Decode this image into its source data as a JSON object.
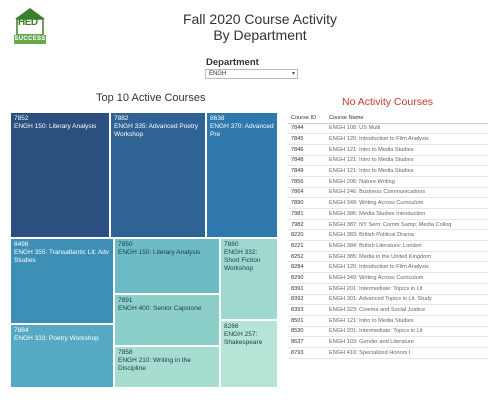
{
  "logo": {
    "text": "HED",
    "band": "SUCCESS"
  },
  "title_line1": "Fall 2020 Course Activity",
  "title_line2": "By Department",
  "department": {
    "label": "Department",
    "value": "ENGH"
  },
  "treemap": {
    "title": "Top 10 Active Courses",
    "tiles": [
      {
        "id": "7852",
        "name": "ENGH 150: Literary Analysis",
        "color": "#2b4f7e"
      },
      {
        "id": "7882",
        "name": "ENGH 335: Advanced Poetry Workshop",
        "color": "#2e6394"
      },
      {
        "id": "8638",
        "name": "ENGH 370: Advanced Pre",
        "color": "#2f78ae"
      },
      {
        "id": "8498",
        "name": "ENGH 355: Transatlantic Lit: Adv Studies",
        "color": "#3d8fb5"
      },
      {
        "id": "7884",
        "name": "ENGH 333: Poetry Workshop",
        "color": "#56a9c2"
      },
      {
        "id": "7850",
        "name": "ENGH 150: Literary Analysis",
        "color": "#6dbbc5"
      },
      {
        "id": "7891",
        "name": "ENGH 400: Senior Capstone",
        "color": "#8ccfc9"
      },
      {
        "id": "7858",
        "name": "ENGH 210: Writing in the Discipline",
        "color": "#a7dcd0"
      },
      {
        "id": "7880",
        "name": "ENGH 332: Short Fiction Workshop",
        "color": "#9ed8cf"
      },
      {
        "id": "8266",
        "name": "ENGH 257: Shakespeare",
        "color": "#b6e4d7"
      }
    ]
  },
  "no_activity": {
    "title": "No Activity Courses",
    "headers": [
      "Course ID",
      "Course Name"
    ],
    "rows": [
      [
        "7844",
        "ENGH 108: US Multi"
      ],
      [
        "7845",
        "ENGH 120: Introduction to Film Analysis"
      ],
      [
        "7846",
        "ENGH 121: Intro to Media Studies"
      ],
      [
        "7848",
        "ENGH 121: Intro to Media Studies"
      ],
      [
        "7849",
        "ENGH 121: Intro to Media Studies"
      ],
      [
        "7856",
        "ENGH 206: Nature Writing"
      ],
      [
        "7864",
        "ENGH 246: Business Communications"
      ],
      [
        "7890",
        "ENGH 349: Writing Across Curriculum"
      ],
      [
        "7981",
        "ENGH 386: Media Studies Introduction"
      ],
      [
        "7982",
        "ENGH 387: NY Sem: Comm Samp; Media Colloq"
      ],
      [
        "8220",
        "ENGH 383: British Political Drama"
      ],
      [
        "8221",
        "ENGH 384: British Literature: London"
      ],
      [
        "8252",
        "ENGH 385: Media in the United Kingdom"
      ],
      [
        "8284",
        "ENGH 120: Introduction to Film Analysis"
      ],
      [
        "8290",
        "ENGH 349: Writing Across Curriculum"
      ],
      [
        "8391",
        "ENGH 201: Intermediate: Topics in Lit"
      ],
      [
        "8392",
        "ENGH 301: Advanced Topics in Lit. Study"
      ],
      [
        "8393",
        "ENGH 323: Cinema and Social Justice"
      ],
      [
        "8501",
        "ENGH 121: Intro to Media Studies"
      ],
      [
        "8530",
        "ENGH 201: Intermediate: Topics in Lit"
      ],
      [
        "8637",
        "ENGH 103: Gender and Literature"
      ],
      [
        "8793",
        "ENGH 410: Specialized Honors I"
      ]
    ]
  }
}
